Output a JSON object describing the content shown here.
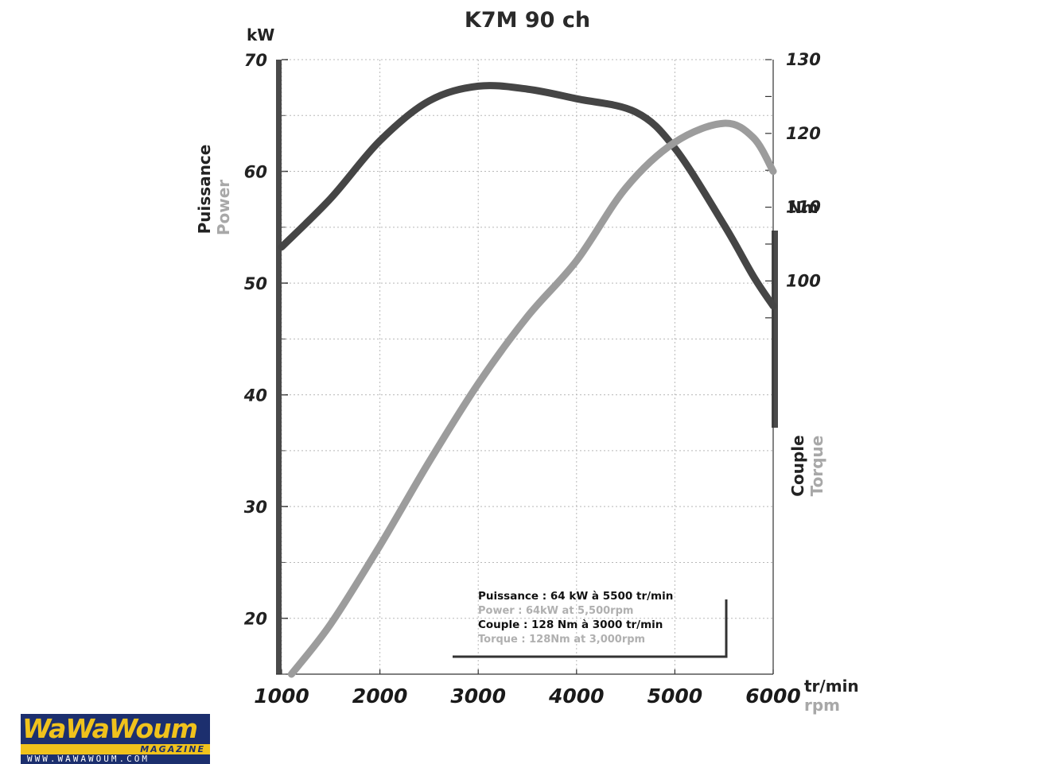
{
  "chart_data": {
    "type": "line",
    "title": "K7M 90 ch",
    "x_unit_primary": "tr/min",
    "x_unit_secondary": "rpm",
    "xlim": [
      1000,
      6000
    ],
    "x_ticks": [
      "1000",
      "2000",
      "3000",
      "4000",
      "5000",
      "6000"
    ],
    "left_axis": {
      "unit": "kW",
      "label_primary": "Puissance",
      "label_secondary": "Power",
      "ylim": [
        15,
        70
      ],
      "ticks": [
        "20",
        "30",
        "40",
        "50",
        "60",
        "70"
      ]
    },
    "right_axis": {
      "unit": "Nm",
      "label_primary": "Couple",
      "label_secondary": "Torque",
      "ylim": [
        46.7,
        130
      ],
      "ticks": [
        "100",
        "110",
        "120",
        "130"
      ]
    },
    "grid": true,
    "series": [
      {
        "axis": "right",
        "color": "#454545",
        "x": [
          1000,
          1500,
          2000,
          2500,
          3000,
          3500,
          4000,
          4600,
          5000,
          5500,
          5800,
          6000
        ],
        "y": [
          104.6,
          111.2,
          119,
          124.4,
          126.4,
          126,
          124.7,
          122.9,
          118,
          107.6,
          100.6,
          96.6
        ]
      },
      {
        "axis": "left",
        "color": "#9c9c9c",
        "x": [
          1100,
          1500,
          2000,
          2500,
          3000,
          3500,
          4000,
          4500,
          5000,
          5500,
          5800,
          6000
        ],
        "y": [
          15,
          19.5,
          26.5,
          34,
          41,
          47,
          52,
          58.5,
          62.6,
          64.3,
          63,
          60
        ]
      }
    ],
    "annotations": [
      "Puissance : 64 kW à 5500 tr/min",
      "Power : 64kW at 5,500rpm",
      "Couple : 128 Nm à 3000 tr/min",
      "Torque : 128Nm at 3,000rpm"
    ]
  },
  "logo": {
    "name": "WaWaWoum",
    "tagline": "MAGAZINE",
    "url": "WWW.WAWAWOUM.COM",
    "colors": {
      "navy": "#1c2f6e",
      "yellow": "#f0c21c"
    }
  }
}
